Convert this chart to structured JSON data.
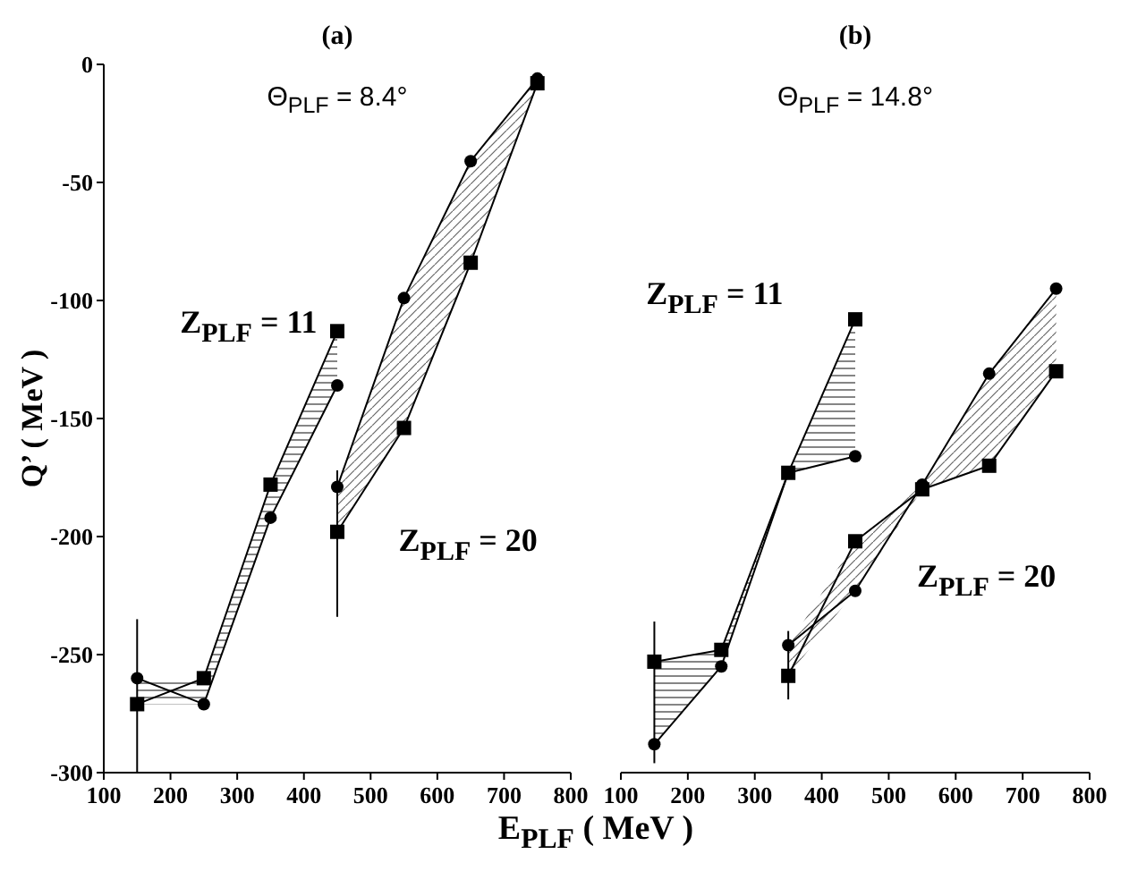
{
  "chart_data": [
    {
      "type": "line",
      "title": "(a)",
      "ylabel": "Q’ ( MeV )",
      "xlabel": "E$_{PLF}$ ( MeV )",
      "xlim": [
        100,
        800
      ],
      "xticks": [
        100,
        200,
        300,
        400,
        500,
        600,
        700,
        800
      ],
      "ylim": [
        -300,
        0
      ],
      "yticks": [
        -300,
        -250,
        -200,
        -150,
        -100,
        -50,
        0
      ],
      "annotations": [
        "Θ$_{PLF}$ = 8.4°",
        "Z$_{PLF}$ = 11",
        "Z$_{PLF}$ = 20"
      ],
      "series": [
        {
          "color": "#000000",
          "marker": "circle",
          "x": [
            150,
            250,
            350,
            450
          ],
          "values": [
            -260,
            -271,
            -192,
            -136
          ],
          "lower": [
            -271,
            -271,
            -192,
            -136
          ],
          "upper": [
            -260,
            -260,
            -178,
            -113
          ]
        },
        {
          "color": "#000000",
          "marker": "square",
          "x": [
            150,
            250,
            350,
            450
          ],
          "values": [
            -271,
            -260,
            -178,
            -113
          ],
          "errors": [
            [
              -300,
              -235
            ],
            null,
            null,
            null
          ]
        },
        {
          "color": "#000000",
          "marker": "circle",
          "x": [
            450,
            550,
            650,
            750
          ],
          "values": [
            -179,
            -99,
            -41,
            -6
          ],
          "lower": [
            -198,
            -154,
            -84,
            -8
          ],
          "upper": [
            -179,
            -99,
            -41,
            -6
          ]
        },
        {
          "color": "#000000",
          "marker": "square",
          "x": [
            450,
            550,
            650,
            750
          ],
          "values": [
            -198,
            -154,
            -84,
            -8
          ],
          "errors": [
            [
              -234,
              -172
            ],
            null,
            null,
            null
          ]
        }
      ]
    },
    {
      "type": "line",
      "title": "(b)",
      "xlim": [
        100,
        800
      ],
      "xticks": [
        100,
        200,
        300,
        400,
        500,
        600,
        700,
        800
      ],
      "ylim": [
        -300,
        0
      ],
      "yticks": [
        -300,
        -250,
        -200,
        -150,
        -100,
        -50,
        0
      ],
      "tick_labels": "x",
      "annotations": [
        "Θ$_{PLF}$ = 14.8°",
        "Z$_{PLF}$ = 11",
        "Z$_{PLF}$ = 20"
      ],
      "series": [
        {
          "color": "#000000",
          "marker": "circle",
          "x": [
            150,
            250,
            350,
            450
          ],
          "values": [
            -288,
            -255,
            -173,
            -166
          ],
          "errors": [
            [
              -296,
              -236
            ],
            null,
            null,
            null
          ],
          "lower": [
            -288,
            -255,
            -173,
            -166
          ],
          "upper": [
            -253,
            -248,
            -173,
            -108
          ]
        },
        {
          "color": "#000000",
          "marker": "square",
          "x": [
            150,
            250,
            350,
            450
          ],
          "values": [
            -253,
            -248,
            -173,
            -108
          ]
        },
        {
          "color": "#000000",
          "marker": "circle",
          "x": [
            350,
            450,
            550,
            650,
            750
          ],
          "values": [
            -246,
            -223,
            -178,
            -131,
            -95
          ],
          "lower": [
            -259,
            -223,
            -180,
            -170,
            -130
          ],
          "upper": [
            -246,
            -202,
            -178,
            -131,
            -95
          ]
        },
        {
          "color": "#000000",
          "marker": "square",
          "x": [
            350,
            450,
            550,
            650,
            750
          ],
          "values": [
            -259,
            -202,
            -180,
            -170,
            -130
          ],
          "errors": [
            [
              -269,
              -240
            ],
            null,
            null,
            null,
            null
          ]
        }
      ]
    }
  ]
}
